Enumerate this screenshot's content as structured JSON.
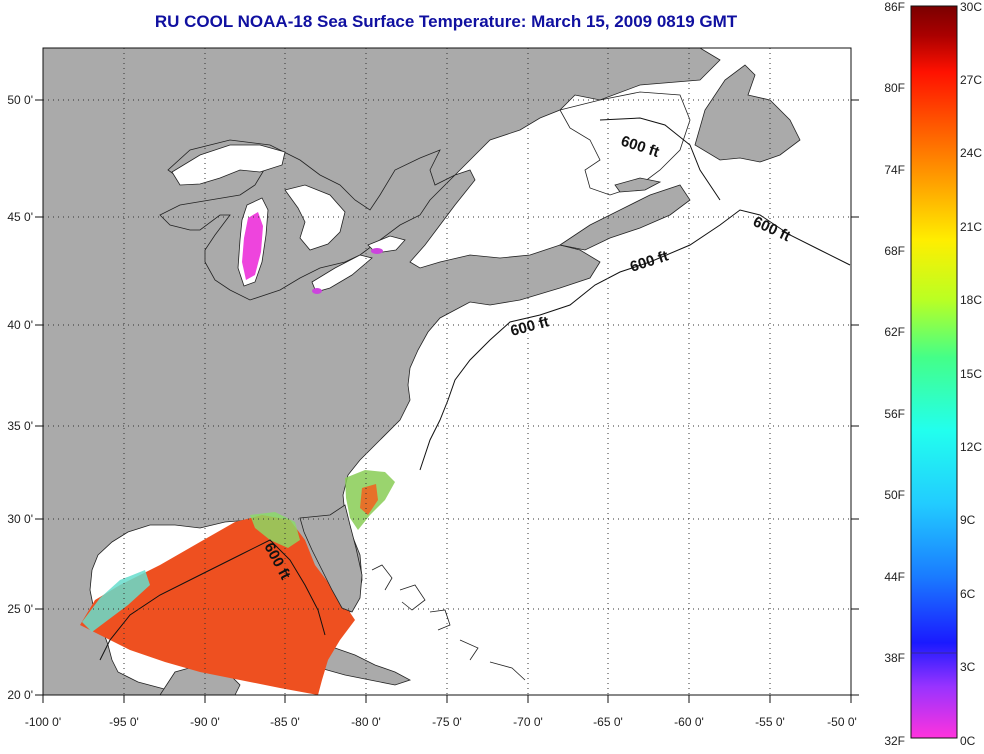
{
  "title": "RU COOL  NOAA-18  Sea Surface Temperature:  March 15, 2009 0819 GMT",
  "map": {
    "lon_labels": [
      "-100 0'",
      "-95 0'",
      "-90 0'",
      "-85 0'",
      "-80 0'",
      "-75 0'",
      "-70 0'",
      "-65 0'",
      "-60 0'",
      "-55 0'",
      "-50 0'"
    ],
    "lat_labels": [
      "20 0'",
      "25 0'",
      "30 0'",
      "35 0'",
      "40 0'",
      "45 0'",
      "50 0'"
    ],
    "contour_label": "600 ft",
    "colors": {
      "land": "#aaaaaa",
      "ocean_no_data": "#ffffff",
      "gulf_sst": "#ee5020",
      "cold_lake": "#ee44dd"
    }
  },
  "colorbar": {
    "fahrenheit_labels": [
      "86F",
      "80F",
      "74F",
      "68F",
      "62F",
      "56F",
      "50F",
      "44F",
      "38F",
      "32F"
    ],
    "celsius_labels": [
      "30C",
      "27C",
      "24C",
      "21C",
      "18C",
      "15C",
      "12C",
      "9C",
      "6C",
      "3C",
      "0C"
    ],
    "gradient_stops": [
      "#ff33dd",
      "#9933ff",
      "#1a1aff",
      "#1a7bff",
      "#22ccff",
      "#22ffee",
      "#44ff88",
      "#bbff22",
      "#ffee00",
      "#ffa000",
      "#ff5500",
      "#ff1100",
      "#aa0000",
      "#7a0000"
    ]
  }
}
